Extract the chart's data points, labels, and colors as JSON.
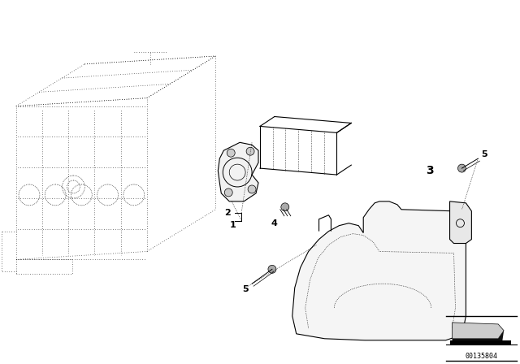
{
  "background_color": "#ffffff",
  "line_color": "#000000",
  "fig_width": 6.4,
  "fig_height": 4.48,
  "dpi": 100,
  "catalog_number": "00135804"
}
